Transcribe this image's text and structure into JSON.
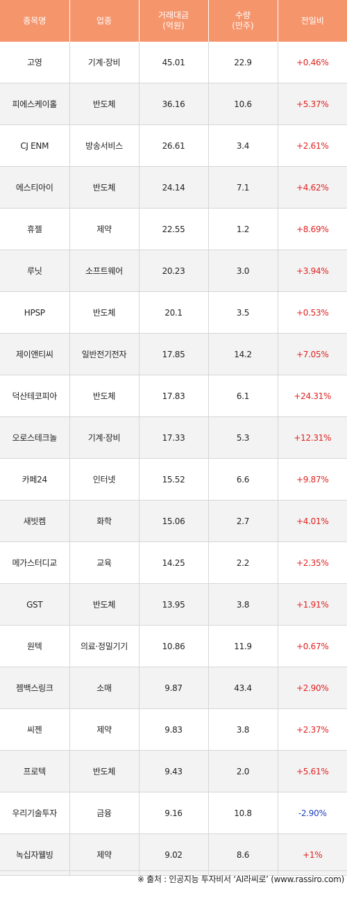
{
  "header": {
    "col1": "종목명",
    "col2": "업종",
    "col3_line1": "거래대금",
    "col3_line2": "(억원)",
    "col4_line1": "수량",
    "col4_line2": "(만주)",
    "col5": "전일비"
  },
  "rows": [
    {
      "name": "고영",
      "sector": "기계·장비",
      "amount": "45.01",
      "qty": "22.9",
      "change": "+0.46%"
    },
    {
      "name": "피에스케이홀",
      "sector": "반도체",
      "amount": "36.16",
      "qty": "10.6",
      "change": "+5.37%"
    },
    {
      "name": "CJ ENM",
      "sector": "방송서비스",
      "amount": "26.61",
      "qty": "3.4",
      "change": "+2.61%"
    },
    {
      "name": "에스티아이",
      "sector": "반도체",
      "amount": "24.14",
      "qty": "7.1",
      "change": "+4.62%"
    },
    {
      "name": "휴젤",
      "sector": "제약",
      "amount": "22.55",
      "qty": "1.2",
      "change": "+8.69%"
    },
    {
      "name": "루닛",
      "sector": "소프트웨어",
      "amount": "20.23",
      "qty": "3.0",
      "change": "+3.94%"
    },
    {
      "name": "HPSP",
      "sector": "반도체",
      "amount": "20.1",
      "qty": "3.5",
      "change": "+0.53%"
    },
    {
      "name": "제이앤티씨",
      "sector": "일반전기전자",
      "amount": "17.85",
      "qty": "14.2",
      "change": "+7.05%"
    },
    {
      "name": "덕산테코피아",
      "sector": "반도체",
      "amount": "17.83",
      "qty": "6.1",
      "change": "+24.31%"
    },
    {
      "name": "오로스테크놀",
      "sector": "기계·장비",
      "amount": "17.33",
      "qty": "5.3",
      "change": "+12.31%"
    },
    {
      "name": "카페24",
      "sector": "인터넷",
      "amount": "15.52",
      "qty": "6.6",
      "change": "+9.87%"
    },
    {
      "name": "새빗켐",
      "sector": "화학",
      "amount": "15.06",
      "qty": "2.7",
      "change": "+4.01%"
    },
    {
      "name": "메가스터디교",
      "sector": "교육",
      "amount": "14.25",
      "qty": "2.2",
      "change": "+2.35%"
    },
    {
      "name": "GST",
      "sector": "반도체",
      "amount": "13.95",
      "qty": "3.8",
      "change": "+1.91%"
    },
    {
      "name": "원텍",
      "sector": "의료·정밀기기",
      "amount": "10.86",
      "qty": "11.9",
      "change": "+0.67%"
    },
    {
      "name": "젬백스링크",
      "sector": "소매",
      "amount": "9.87",
      "qty": "43.4",
      "change": "+2.90%"
    },
    {
      "name": "씨젠",
      "sector": "제약",
      "amount": "9.83",
      "qty": "3.8",
      "change": "+2.37%"
    },
    {
      "name": "프로텍",
      "sector": "반도체",
      "amount": "9.43",
      "qty": "2.0",
      "change": "+5.61%"
    },
    {
      "name": "우리기술투자",
      "sector": "금융",
      "amount": "9.16",
      "qty": "10.8",
      "change": "-2.90%"
    },
    {
      "name": "녹십자웰빙",
      "sector": "제약",
      "amount": "9.02",
      "qty": "8.6",
      "change": "+1%"
    }
  ],
  "footer": {
    "source": "※ 출처 : 인공지능 투자비서 ‘AI라씨로’ (www.rassiro.com)"
  },
  "colors": {
    "header_bg": "#f5956c",
    "up": "#e02020",
    "down": "#1f3fbf",
    "stripe": "#f3f3f3"
  }
}
